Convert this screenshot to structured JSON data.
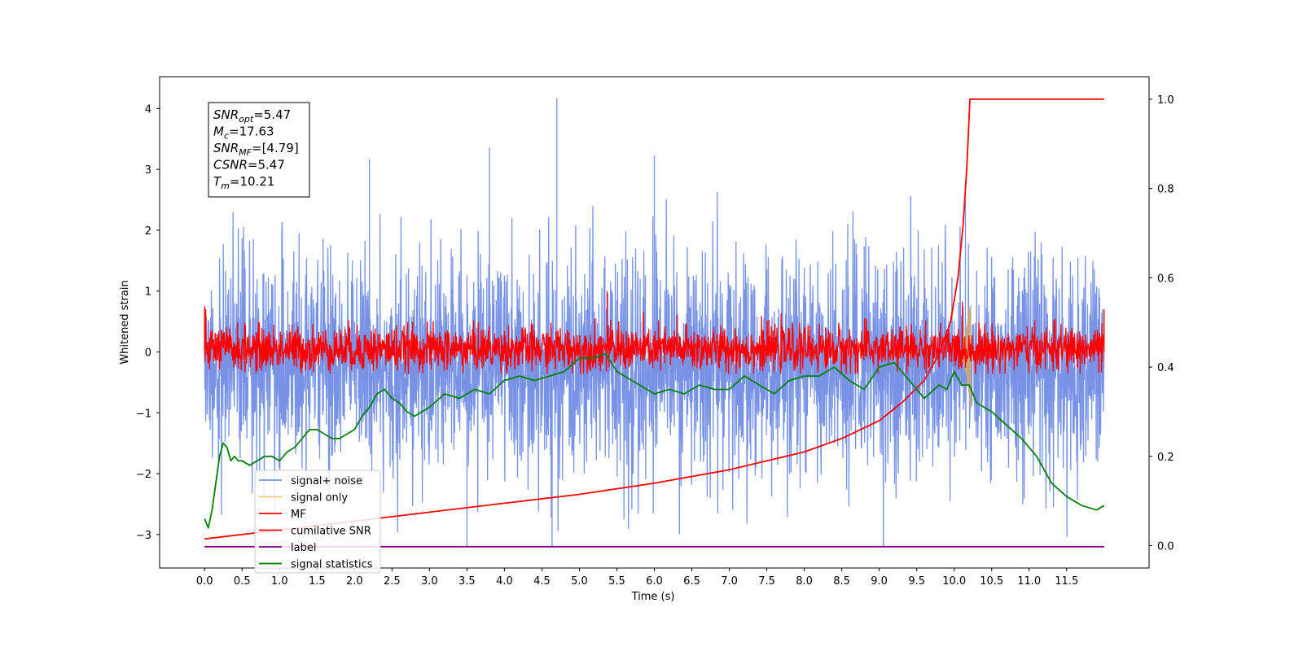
{
  "chart_data": {
    "type": "line",
    "xlabel": "Time (s)",
    "ylabel": "Whitened strain",
    "xlim": [
      -0.6,
      12.6
    ],
    "ylim": [
      -3.55,
      4.52
    ],
    "y2lim": [
      -0.05,
      1.05
    ],
    "x_ticks": [
      "0.0",
      "0.5",
      "1.0",
      "1.5",
      "2.0",
      "2.5",
      "3.0",
      "3.5",
      "4.0",
      "4.5",
      "5.0",
      "5.5",
      "6.0",
      "6.5",
      "7.0",
      "7.5",
      "8.0",
      "8.5",
      "9.0",
      "9.5",
      "10.0",
      "10.5",
      "11.0",
      "11.5"
    ],
    "y_ticks": [
      "4",
      "3",
      "2",
      "1",
      "0",
      "−1",
      "−2",
      "−3"
    ],
    "y2_ticks": [
      "1.0",
      "0.8",
      "0.6",
      "0.4",
      "0.2",
      "0.0"
    ],
    "legend_position": "lower-left",
    "info_box": [
      {
        "main": "SNR",
        "sub": "opt",
        "rest": "=5.47"
      },
      {
        "main": "M",
        "sub": "c",
        "rest": "=17.63"
      },
      {
        "main": "SNR",
        "sub": "MF",
        "rest": "=[4.79]"
      },
      {
        "main": "CSNR",
        "sub": "",
        "rest": "=5.47"
      },
      {
        "main": "T",
        "sub": "m",
        "rest": "=10.21"
      }
    ],
    "series": [
      {
        "name": "signal+ noise",
        "color": "#7893e6",
        "axis": "left",
        "kind": "noise",
        "x_range": [
          0,
          12.0
        ],
        "amplitude_range": [
          -3.2,
          4.17
        ]
      },
      {
        "name": "signal only",
        "color": "#f5c878",
        "axis": "left",
        "kind": "chirp",
        "x_range": [
          10.1,
          10.22
        ],
        "amplitude_range": [
          -1.0,
          0.92
        ]
      },
      {
        "name": "MF",
        "color": "#ff0000",
        "axis": "left",
        "kind": "noise",
        "x_range": [
          0,
          12.0
        ],
        "amplitude_range": [
          -0.35,
          1.0
        ]
      },
      {
        "name": "cumilative SNR",
        "color": "#ff0000",
        "axis": "right",
        "x": [
          0.0,
          1.0,
          2.0,
          3.0,
          4.0,
          5.0,
          6.0,
          7.0,
          8.0,
          8.5,
          9.0,
          9.3,
          9.6,
          9.8,
          9.95,
          10.05,
          10.12,
          10.17,
          10.21,
          12.0
        ],
        "y": [
          0.015,
          0.035,
          0.055,
          0.075,
          0.095,
          0.115,
          0.14,
          0.17,
          0.21,
          0.24,
          0.28,
          0.32,
          0.37,
          0.43,
          0.5,
          0.6,
          0.72,
          0.85,
          1.0,
          1.0
        ]
      },
      {
        "name": "label",
        "color": "#800080",
        "axis": "left",
        "x": [
          0.0,
          12.0
        ],
        "y": [
          -3.2,
          -3.2
        ]
      },
      {
        "name": "signal statistics",
        "color": "#008000",
        "axis": "right",
        "x": [
          0.0,
          0.05,
          0.1,
          0.15,
          0.2,
          0.25,
          0.3,
          0.35,
          0.4,
          0.45,
          0.5,
          0.6,
          0.7,
          0.8,
          0.9,
          1.0,
          1.1,
          1.2,
          1.3,
          1.4,
          1.5,
          1.6,
          1.7,
          1.8,
          1.9,
          2.0,
          2.1,
          2.2,
          2.3,
          2.4,
          2.5,
          2.6,
          2.7,
          2.8,
          2.9,
          3.0,
          3.2,
          3.4,
          3.6,
          3.8,
          4.0,
          4.2,
          4.4,
          4.6,
          4.8,
          5.0,
          5.2,
          5.35,
          5.5,
          5.7,
          5.9,
          6.0,
          6.2,
          6.4,
          6.6,
          6.8,
          7.0,
          7.2,
          7.4,
          7.6,
          7.8,
          8.0,
          8.2,
          8.4,
          8.6,
          8.8,
          9.0,
          9.2,
          9.4,
          9.6,
          9.8,
          9.9,
          10.0,
          10.1,
          10.2,
          10.3,
          10.5,
          10.7,
          10.9,
          11.1,
          11.3,
          11.5,
          11.7,
          11.9,
          12.0
        ],
        "y": [
          0.06,
          0.04,
          0.08,
          0.14,
          0.2,
          0.23,
          0.22,
          0.19,
          0.2,
          0.19,
          0.19,
          0.18,
          0.19,
          0.2,
          0.2,
          0.19,
          0.21,
          0.22,
          0.24,
          0.26,
          0.26,
          0.25,
          0.24,
          0.24,
          0.25,
          0.26,
          0.29,
          0.31,
          0.34,
          0.35,
          0.33,
          0.32,
          0.3,
          0.29,
          0.3,
          0.31,
          0.34,
          0.33,
          0.35,
          0.34,
          0.37,
          0.38,
          0.37,
          0.38,
          0.39,
          0.42,
          0.42,
          0.43,
          0.39,
          0.37,
          0.35,
          0.34,
          0.35,
          0.34,
          0.36,
          0.35,
          0.35,
          0.38,
          0.36,
          0.34,
          0.37,
          0.38,
          0.38,
          0.4,
          0.37,
          0.35,
          0.4,
          0.41,
          0.37,
          0.33,
          0.36,
          0.35,
          0.39,
          0.36,
          0.36,
          0.32,
          0.3,
          0.27,
          0.24,
          0.2,
          0.14,
          0.11,
          0.09,
          0.08,
          0.09
        ]
      }
    ]
  }
}
